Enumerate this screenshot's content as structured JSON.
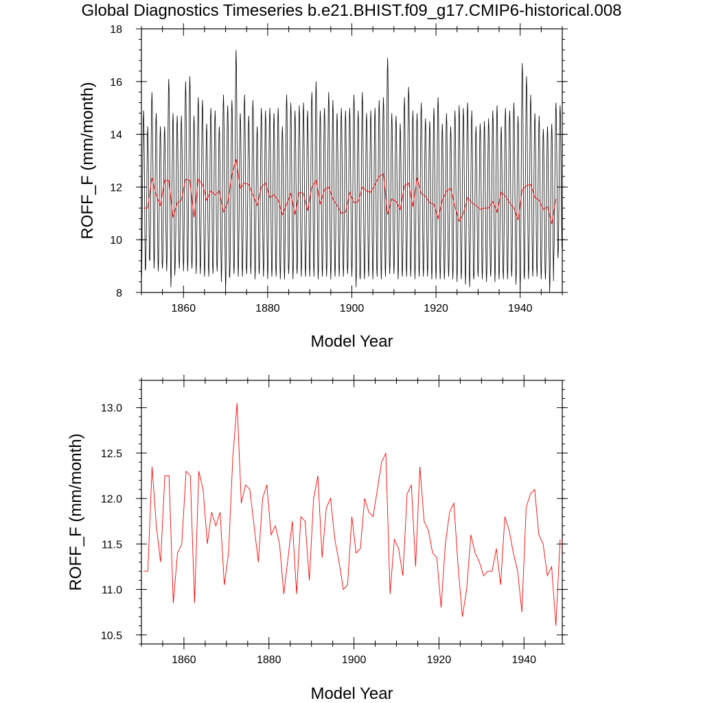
{
  "title": "Global Diagnostics Timeseries b.e21.BHIST.f09_g17.CMIP6-historical.008",
  "colors": {
    "monthly": "#000000",
    "annual": "#ff0000"
  },
  "chart_data": [
    {
      "type": "line",
      "xlabel": "Model Year",
      "ylabel": "ROFF_F (mm/month)",
      "xlim": [
        1850,
        1950
      ],
      "ylim": [
        8,
        18
      ],
      "xticks": [
        1860,
        1880,
        1900,
        1920,
        1940
      ],
      "yticks": [
        8,
        10,
        12,
        14,
        16,
        18
      ],
      "ytick_labels": [
        "8",
        "10",
        "12",
        "14",
        "16",
        "18"
      ],
      "series": [
        {
          "role": "monthly",
          "x_start": 1850.0,
          "x_step": 0.08333,
          "annual_peaks": [
            14.9,
            14.3,
            15.6,
            14.8,
            14.3,
            14.3,
            16.1,
            14.8,
            14.7,
            14.7,
            16.0,
            16.2,
            14.7,
            15.4,
            15.3,
            14.4,
            15.0,
            14.9,
            14.3,
            15.5,
            15.1,
            15.3,
            17.2,
            14.8,
            15.5,
            14.7,
            15.3,
            14.3,
            15.0,
            14.9,
            15.0,
            14.8,
            15.0,
            14.3,
            15.5,
            15.2,
            14.9,
            15.1,
            15.2,
            14.9,
            15.6,
            16.0,
            14.9,
            15.0,
            15.6,
            15.3,
            14.8,
            15.0,
            14.9,
            15.0,
            15.5,
            14.9,
            15.6,
            14.8,
            14.9,
            15.0,
            15.3,
            15.4,
            16.9,
            14.8,
            14.7,
            14.4,
            15.4,
            15.8,
            14.9,
            14.8,
            15.2,
            14.6,
            14.5,
            15.0,
            15.4,
            14.4,
            14.8,
            14.3,
            14.9,
            15.1,
            15.0,
            15.2,
            14.9,
            14.3,
            14.4,
            14.5,
            14.6,
            14.9,
            15.1,
            14.3,
            15.0,
            14.9,
            15.2,
            14.7,
            16.7,
            16.2,
            15.5,
            14.8,
            14.7,
            14.2,
            14.3,
            14.4,
            15.2,
            15.1
          ],
          "annual_troughs": [
            8.4,
            8.9,
            9.2,
            8.9,
            8.8,
            8.9,
            8.8,
            8.2,
            8.9,
            8.9,
            8.8,
            8.8,
            8.9,
            8.7,
            8.7,
            8.6,
            8.6,
            8.7,
            8.8,
            8.4,
            8.1,
            8.6,
            8.7,
            8.6,
            8.6,
            8.7,
            8.7,
            8.5,
            8.7,
            8.6,
            8.5,
            8.6,
            8.6,
            8.5,
            8.5,
            8.7,
            8.5,
            8.7,
            8.6,
            8.6,
            8.6,
            8.6,
            8.5,
            8.6,
            8.6,
            8.5,
            8.6,
            8.6,
            8.6,
            8.7,
            8.6,
            8.2,
            8.5,
            8.5,
            8.6,
            8.5,
            8.6,
            8.5,
            8.6,
            8.7,
            8.7,
            8.5,
            8.6,
            8.6,
            8.6,
            8.5,
            8.6,
            8.6,
            8.6,
            8.5,
            8.5,
            8.5,
            8.5,
            8.6,
            8.5,
            8.4,
            8.5,
            8.3,
            8.2,
            8.5,
            8.6,
            8.5,
            8.4,
            8.6,
            8.4,
            8.5,
            8.5,
            8.5,
            8.6,
            8.3,
            8.1,
            8.5,
            8.5,
            8.6,
            8.6,
            8.5,
            8.5,
            8.0,
            9.4,
            9.3
          ]
        },
        {
          "role": "annual",
          "x_start": 1850.5,
          "values": [
            11.2,
            11.2,
            12.35,
            11.7,
            11.3,
            12.25,
            12.25,
            10.85,
            11.4,
            11.5,
            12.3,
            12.25,
            10.85,
            12.3,
            12.1,
            11.5,
            11.85,
            11.7,
            11.85,
            11.05,
            11.4,
            12.45,
            13.05,
            11.95,
            12.15,
            12.1,
            11.7,
            11.3,
            12.0,
            12.15,
            11.6,
            11.7,
            11.5,
            10.95,
            11.35,
            11.75,
            10.95,
            11.8,
            11.75,
            11.1,
            12.0,
            12.25,
            11.35,
            11.9,
            12.0,
            11.55,
            11.3,
            11.0,
            11.05,
            11.8,
            11.4,
            11.45,
            12.0,
            11.85,
            11.8,
            12.1,
            12.4,
            12.5,
            10.95,
            11.55,
            11.45,
            11.15,
            12.05,
            12.15,
            11.25,
            12.35,
            11.75,
            11.65,
            11.4,
            11.35,
            10.8,
            11.5,
            11.85,
            11.95,
            11.25,
            10.7,
            11.0,
            11.6,
            11.4,
            11.3,
            11.15,
            11.2,
            11.2,
            11.45,
            11.05,
            11.8,
            11.65,
            11.4,
            11.2,
            10.75,
            11.9,
            12.05,
            12.1,
            11.6,
            11.5,
            11.15,
            11.25,
            10.6,
            11.55
          ]
        }
      ]
    },
    {
      "type": "line",
      "xlabel": "Model Year",
      "ylabel": "ROFF_F (mm/month)",
      "xlim": [
        1850,
        1949
      ],
      "ylim": [
        10.4,
        13.3
      ],
      "xticks": [
        1860,
        1880,
        1900,
        1920,
        1940
      ],
      "yticks": [
        10.5,
        11.0,
        11.5,
        12.0,
        12.5,
        13.0
      ],
      "ytick_labels": [
        "10.5",
        "11.0",
        "11.5",
        "12.0",
        "12.5",
        "13.0"
      ],
      "series": [
        {
          "role": "annual",
          "x_start": 1850.5,
          "values": [
            11.2,
            11.2,
            12.35,
            11.7,
            11.3,
            12.25,
            12.25,
            10.85,
            11.4,
            11.5,
            12.3,
            12.25,
            10.85,
            12.3,
            12.1,
            11.5,
            11.85,
            11.7,
            11.85,
            11.05,
            11.4,
            12.45,
            13.05,
            11.95,
            12.15,
            12.1,
            11.7,
            11.3,
            12.0,
            12.15,
            11.6,
            11.7,
            11.5,
            10.95,
            11.35,
            11.75,
            10.95,
            11.8,
            11.75,
            11.1,
            12.0,
            12.25,
            11.35,
            11.9,
            12.0,
            11.55,
            11.3,
            11.0,
            11.05,
            11.8,
            11.4,
            11.45,
            12.0,
            11.85,
            11.8,
            12.1,
            12.4,
            12.5,
            10.95,
            11.55,
            11.45,
            11.15,
            12.05,
            12.15,
            11.25,
            12.35,
            11.75,
            11.65,
            11.4,
            11.35,
            10.8,
            11.5,
            11.85,
            11.95,
            11.25,
            10.7,
            11.0,
            11.6,
            11.4,
            11.3,
            11.15,
            11.2,
            11.2,
            11.45,
            11.05,
            11.8,
            11.65,
            11.4,
            11.2,
            10.75,
            11.9,
            12.05,
            12.1,
            11.6,
            11.5,
            11.15,
            11.25,
            10.6,
            11.55
          ]
        }
      ]
    }
  ]
}
